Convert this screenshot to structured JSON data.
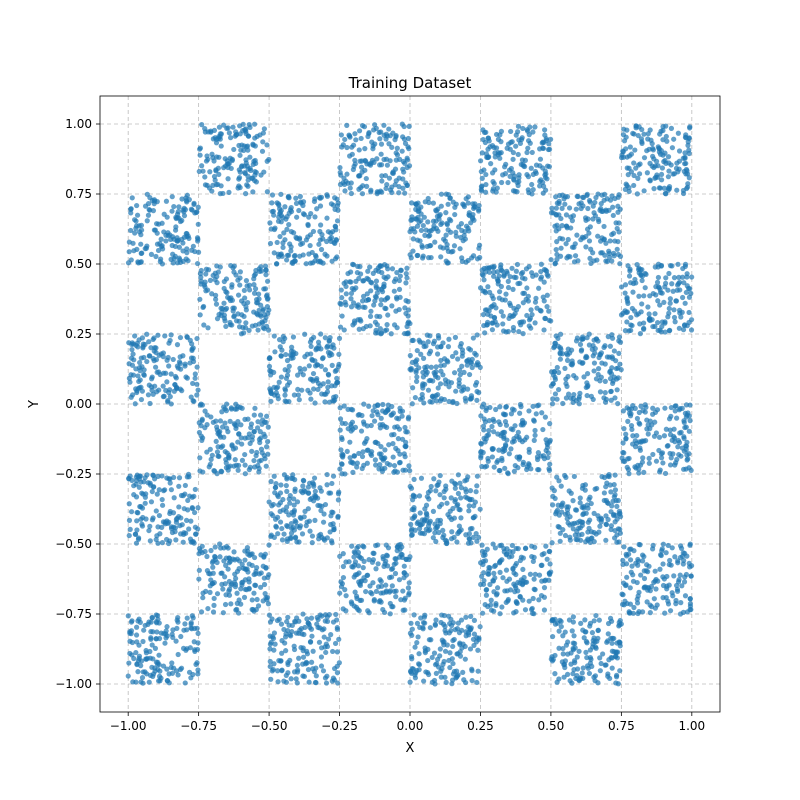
{
  "chart_data": {
    "type": "scatter",
    "title": "Training Dataset",
    "xlabel": "X",
    "ylabel": "Y",
    "xlim": [
      -1.1,
      1.1
    ],
    "ylim": [
      -1.1,
      1.1
    ],
    "xticks": [
      -1.0,
      -0.75,
      -0.5,
      -0.25,
      0.0,
      0.25,
      0.5,
      0.75,
      1.0
    ],
    "yticks": [
      -1.0,
      -0.75,
      -0.5,
      -0.25,
      0.0,
      0.25,
      0.5,
      0.75,
      1.0
    ],
    "xtick_labels": [
      "−1.00",
      "−0.75",
      "−0.50",
      "−0.25",
      "0.00",
      "0.25",
      "0.50",
      "0.75",
      "1.00"
    ],
    "ytick_labels": [
      "−1.00",
      "−0.75",
      "−0.50",
      "−0.25",
      "0.00",
      "0.25",
      "0.50",
      "0.75",
      "1.00"
    ],
    "grid": true,
    "grid_style": "dashed",
    "series_color": "#1f77b4",
    "point_alpha": 0.7,
    "pattern": "checkerboard",
    "occupied_squares": [
      {
        "x": [
          -0.75,
          -0.5
        ],
        "y": [
          0.75,
          1.0
        ]
      },
      {
        "x": [
          -0.25,
          0.0
        ],
        "y": [
          0.75,
          1.0
        ]
      },
      {
        "x": [
          0.25,
          0.5
        ],
        "y": [
          0.75,
          1.0
        ]
      },
      {
        "x": [
          0.75,
          1.0
        ],
        "y": [
          0.75,
          1.0
        ]
      },
      {
        "x": [
          -1.0,
          -0.75
        ],
        "y": [
          0.5,
          0.75
        ]
      },
      {
        "x": [
          -0.5,
          -0.25
        ],
        "y": [
          0.5,
          0.75
        ]
      },
      {
        "x": [
          0.0,
          0.25
        ],
        "y": [
          0.5,
          0.75
        ]
      },
      {
        "x": [
          0.5,
          0.75
        ],
        "y": [
          0.5,
          0.75
        ]
      },
      {
        "x": [
          -0.75,
          -0.5
        ],
        "y": [
          0.25,
          0.5
        ]
      },
      {
        "x": [
          -0.25,
          0.0
        ],
        "y": [
          0.25,
          0.5
        ]
      },
      {
        "x": [
          0.25,
          0.5
        ],
        "y": [
          0.25,
          0.5
        ]
      },
      {
        "x": [
          0.75,
          1.0
        ],
        "y": [
          0.25,
          0.5
        ]
      },
      {
        "x": [
          -1.0,
          -0.75
        ],
        "y": [
          0.0,
          0.25
        ]
      },
      {
        "x": [
          -0.5,
          -0.25
        ],
        "y": [
          0.0,
          0.25
        ]
      },
      {
        "x": [
          0.0,
          0.25
        ],
        "y": [
          0.0,
          0.25
        ]
      },
      {
        "x": [
          0.5,
          0.75
        ],
        "y": [
          0.0,
          0.25
        ]
      },
      {
        "x": [
          -0.75,
          -0.5
        ],
        "y": [
          -0.25,
          0.0
        ]
      },
      {
        "x": [
          -0.25,
          0.0
        ],
        "y": [
          -0.25,
          0.0
        ]
      },
      {
        "x": [
          0.25,
          0.5
        ],
        "y": [
          -0.25,
          0.0
        ]
      },
      {
        "x": [
          0.75,
          1.0
        ],
        "y": [
          -0.25,
          0.0
        ]
      },
      {
        "x": [
          -1.0,
          -0.75
        ],
        "y": [
          -0.5,
          -0.25
        ]
      },
      {
        "x": [
          -0.5,
          -0.25
        ],
        "y": [
          -0.5,
          -0.25
        ]
      },
      {
        "x": [
          0.0,
          0.25
        ],
        "y": [
          -0.5,
          -0.25
        ]
      },
      {
        "x": [
          0.5,
          0.75
        ],
        "y": [
          -0.5,
          -0.25
        ]
      },
      {
        "x": [
          -0.75,
          -0.5
        ],
        "y": [
          -0.75,
          -0.5
        ]
      },
      {
        "x": [
          -0.25,
          0.0
        ],
        "y": [
          -0.75,
          -0.5
        ]
      },
      {
        "x": [
          0.25,
          0.5
        ],
        "y": [
          -0.75,
          -0.5
        ]
      },
      {
        "x": [
          0.75,
          1.0
        ],
        "y": [
          -0.75,
          -0.5
        ]
      },
      {
        "x": [
          -1.0,
          -0.75
        ],
        "y": [
          -1.0,
          -0.75
        ]
      },
      {
        "x": [
          -0.5,
          -0.25
        ],
        "y": [
          -1.0,
          -0.75
        ]
      },
      {
        "x": [
          0.0,
          0.25
        ],
        "y": [
          -1.0,
          -0.75
        ]
      },
      {
        "x": [
          0.5,
          0.75
        ],
        "y": [
          -1.0,
          -0.75
        ]
      }
    ],
    "points_per_square": 150
  }
}
